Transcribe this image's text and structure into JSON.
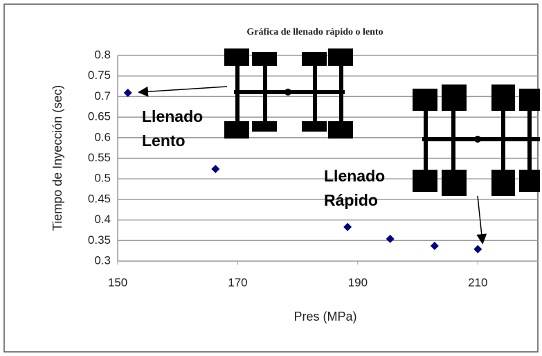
{
  "chart_data": {
    "type": "scatter",
    "title": "Gráfica  de llenado rápido o lento",
    "x_label": "Pres (MPa)",
    "y_label": "Tiempo de Inyección (sec)",
    "x": [
      151.7,
      166.3,
      188.3,
      195.4,
      202.8,
      210
    ],
    "values": [
      0.709,
      0.524,
      0.383,
      0.354,
      0.337,
      0.329
    ],
    "color": "#000080",
    "xlim": [
      150,
      220
    ],
    "xticks": [
      150,
      170,
      190,
      210
    ],
    "ylim": [
      0.3,
      0.8
    ],
    "yticks": [
      0.3,
      0.35,
      0.4,
      0.45,
      0.5,
      0.55,
      0.6,
      0.65,
      0.7,
      0.75,
      0.8
    ],
    "grid": true,
    "annotations": [
      {
        "lines": [
          "Llenado",
          "Lento"
        ]
      },
      {
        "lines": [
          "Llenado",
          "Rápido"
        ]
      }
    ]
  }
}
